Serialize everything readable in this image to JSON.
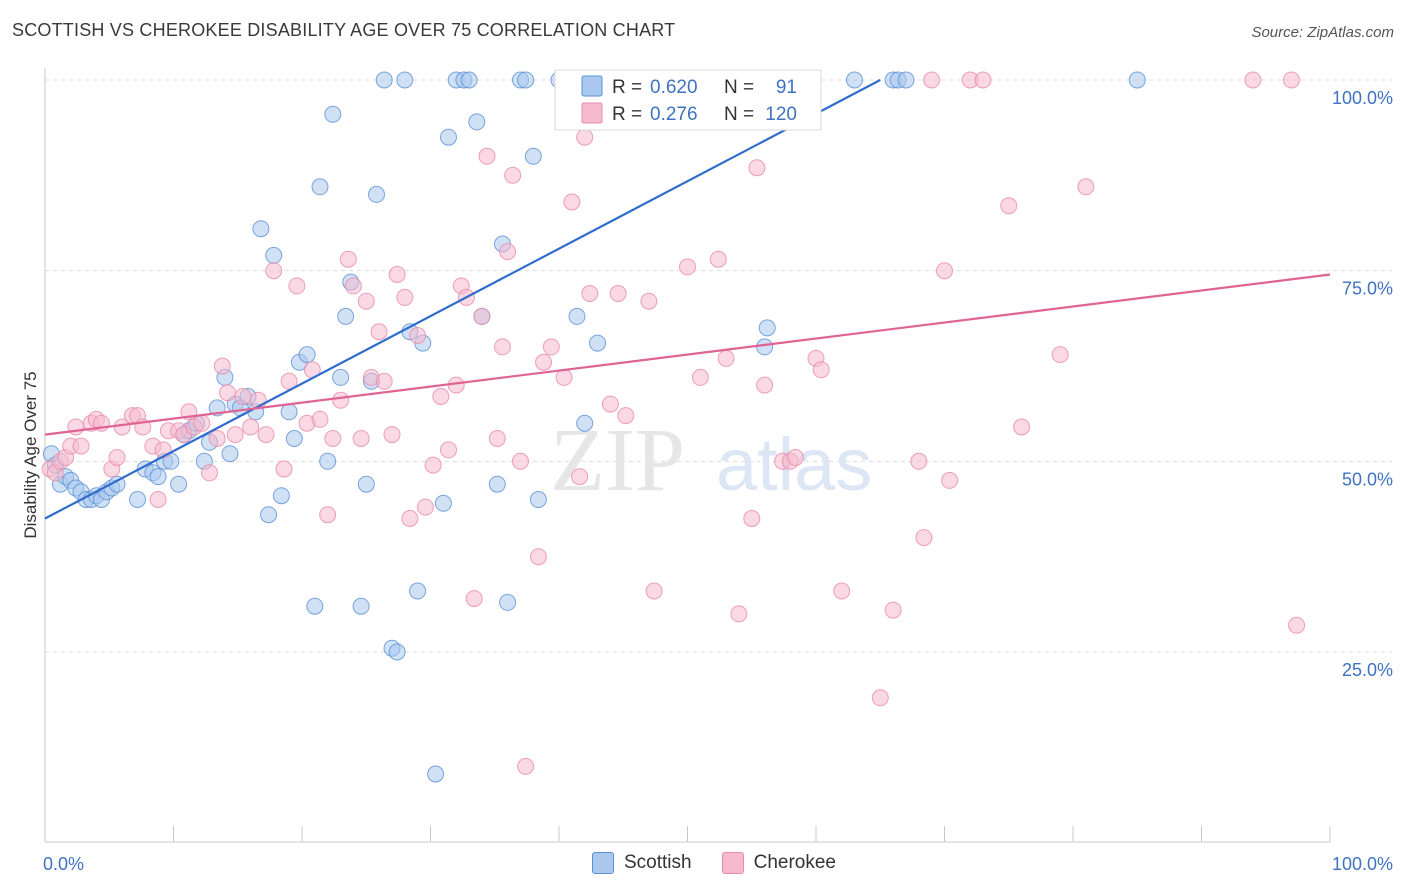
{
  "title": "SCOTTISH VS CHEROKEE DISABILITY AGE OVER 75 CORRELATION CHART",
  "source": "Source: ZipAtlas.com",
  "watermark": {
    "zip": "ZIP",
    "atlas": "atlas"
  },
  "colors": {
    "scottish_fill": "#aac8ee",
    "scottish_stroke": "#5b8fd6",
    "scottish_line": "#2f6ccc",
    "cherokee_fill": "#f5bacd",
    "cherokee_stroke": "#e88aa8",
    "cherokee_line": "#e06393",
    "axis_label": "#3f72c2",
    "grid": "#dcdcdc"
  },
  "stats_legend": [
    {
      "series": "Scottish",
      "r_label": "R =",
      "r_value": "0.620",
      "n_label": "N =",
      "n_value": "91"
    },
    {
      "series": "Cherokee",
      "r_label": "R =",
      "r_value": "0.276",
      "n_label": "N =",
      "n_value": "120"
    }
  ],
  "chart_data": {
    "type": "scatter",
    "title": "SCOTTISH VS CHEROKEE DISABILITY AGE OVER 75 CORRELATION CHART",
    "xlabel": "",
    "ylabel": "Disability Age Over 75",
    "xlim": [
      0,
      100
    ],
    "ylim": [
      0,
      102
    ],
    "x_tick_labels": [
      "0.0%",
      "100.0%"
    ],
    "y_ticks": [
      25,
      50,
      75,
      100
    ],
    "y_tick_labels": [
      "25.0%",
      "50.0%",
      "75.0%",
      "100.0%"
    ],
    "grid": "horizontal dashed",
    "legend": "bottom-center",
    "series": [
      {
        "name": "Scottish",
        "trend": {
          "x": [
            0,
            65
          ],
          "y": [
            42.5,
            100
          ]
        },
        "points": [
          [
            0.5,
            51
          ],
          [
            0.8,
            49.5
          ],
          [
            1.2,
            47
          ],
          [
            1.6,
            48
          ],
          [
            2,
            47.5
          ],
          [
            2.4,
            46.5
          ],
          [
            2.8,
            46
          ],
          [
            3.2,
            45
          ],
          [
            3.6,
            45
          ],
          [
            4,
            45.5
          ],
          [
            4.4,
            45
          ],
          [
            4.8,
            46
          ],
          [
            5.2,
            46.5
          ],
          [
            5.6,
            47
          ],
          [
            7.2,
            45
          ],
          [
            7.8,
            49
          ],
          [
            8.4,
            48.5
          ],
          [
            8.8,
            48
          ],
          [
            9.3,
            50
          ],
          [
            9.8,
            50
          ],
          [
            10.4,
            47
          ],
          [
            10.8,
            53.5
          ],
          [
            11.2,
            54
          ],
          [
            11.8,
            55
          ],
          [
            12.4,
            50
          ],
          [
            12.8,
            52.5
          ],
          [
            13.4,
            57
          ],
          [
            14,
            61
          ],
          [
            14.4,
            51
          ],
          [
            14.8,
            57.5
          ],
          [
            15.2,
            57
          ],
          [
            15.8,
            58.5
          ],
          [
            16.4,
            56.5
          ],
          [
            16.8,
            80.5
          ],
          [
            17.4,
            43
          ],
          [
            17.8,
            77
          ],
          [
            18.4,
            45.5
          ],
          [
            19,
            56.5
          ],
          [
            19.4,
            53
          ],
          [
            19.8,
            63
          ],
          [
            20.4,
            64
          ],
          [
            21,
            31
          ],
          [
            21.4,
            86
          ],
          [
            22,
            50
          ],
          [
            22.4,
            95.5
          ],
          [
            23,
            61
          ],
          [
            23.4,
            69
          ],
          [
            23.8,
            73.5
          ],
          [
            24.6,
            31
          ],
          [
            25,
            47
          ],
          [
            25.4,
            60.5
          ],
          [
            25.8,
            85
          ],
          [
            26.4,
            100
          ],
          [
            27,
            25.5
          ],
          [
            27.4,
            25
          ],
          [
            28,
            100
          ],
          [
            28.4,
            67
          ],
          [
            29,
            33
          ],
          [
            29.4,
            65.5
          ],
          [
            30.4,
            9
          ],
          [
            31,
            44.5
          ],
          [
            31.4,
            92.5
          ],
          [
            32,
            100
          ],
          [
            32.6,
            100
          ],
          [
            33,
            100
          ],
          [
            33.6,
            94.5
          ],
          [
            34,
            69
          ],
          [
            35.2,
            47
          ],
          [
            35.6,
            78.5
          ],
          [
            36,
            31.5
          ],
          [
            37,
            100
          ],
          [
            37.4,
            100
          ],
          [
            38,
            90
          ],
          [
            38.4,
            45
          ],
          [
            40,
            100
          ],
          [
            41.4,
            69
          ],
          [
            42,
            55
          ],
          [
            43,
            65.5
          ],
          [
            45,
            100
          ],
          [
            47,
            100
          ],
          [
            50,
            100
          ],
          [
            56,
            65
          ],
          [
            56.2,
            67.5
          ],
          [
            63,
            100
          ],
          [
            66,
            100
          ],
          [
            85,
            100
          ],
          [
            66.4,
            100
          ],
          [
            67,
            100
          ]
        ]
      },
      {
        "name": "Cherokee",
        "trend": {
          "x": [
            0,
            100
          ],
          "y": [
            53.5,
            74.5
          ]
        },
        "points": [
          [
            0.4,
            49
          ],
          [
            0.8,
            48.5
          ],
          [
            1.2,
            50
          ],
          [
            1.6,
            50.5
          ],
          [
            2,
            52
          ],
          [
            2.4,
            54.5
          ],
          [
            2.8,
            52
          ],
          [
            3.6,
            55
          ],
          [
            4,
            55.5
          ],
          [
            4.4,
            55
          ],
          [
            5.2,
            49
          ],
          [
            5.6,
            50.5
          ],
          [
            6,
            54.5
          ],
          [
            6.8,
            56
          ],
          [
            7.2,
            56
          ],
          [
            7.6,
            54.5
          ],
          [
            8.4,
            52
          ],
          [
            8.8,
            45
          ],
          [
            9.2,
            51.5
          ],
          [
            9.6,
            54
          ],
          [
            10.4,
            54
          ],
          [
            10.8,
            53.5
          ],
          [
            11.2,
            56.5
          ],
          [
            11.6,
            54.5
          ],
          [
            12.2,
            55
          ],
          [
            12.8,
            48.5
          ],
          [
            13.4,
            53
          ],
          [
            13.8,
            62.5
          ],
          [
            14.2,
            59
          ],
          [
            14.8,
            53.5
          ],
          [
            15.4,
            58.5
          ],
          [
            16,
            54.5
          ],
          [
            16.6,
            58
          ],
          [
            17.2,
            53.5
          ],
          [
            17.8,
            75
          ],
          [
            18.6,
            49
          ],
          [
            19,
            60.5
          ],
          [
            19.6,
            73
          ],
          [
            20.4,
            55
          ],
          [
            20.8,
            62
          ],
          [
            21.4,
            55.5
          ],
          [
            22,
            43
          ],
          [
            22.4,
            53
          ],
          [
            23,
            58
          ],
          [
            23.6,
            76.5
          ],
          [
            24,
            73
          ],
          [
            24.6,
            53
          ],
          [
            25,
            71
          ],
          [
            25.4,
            61
          ],
          [
            26,
            67
          ],
          [
            26.4,
            60.5
          ],
          [
            27,
            53.5
          ],
          [
            27.4,
            74.5
          ],
          [
            28,
            71.5
          ],
          [
            28.4,
            42.5
          ],
          [
            29,
            66.5
          ],
          [
            29.6,
            44
          ],
          [
            30.2,
            49.5
          ],
          [
            30.8,
            58.5
          ],
          [
            31.4,
            51.5
          ],
          [
            32,
            60
          ],
          [
            32.4,
            73
          ],
          [
            32.8,
            71.5
          ],
          [
            33.4,
            32
          ],
          [
            34,
            69
          ],
          [
            34.4,
            90
          ],
          [
            35.2,
            53
          ],
          [
            35.6,
            65
          ],
          [
            36,
            77.5
          ],
          [
            36.4,
            87.5
          ],
          [
            37,
            50
          ],
          [
            37.4,
            10
          ],
          [
            38.4,
            37.5
          ],
          [
            38.8,
            63
          ],
          [
            39.4,
            65
          ],
          [
            40.4,
            61
          ],
          [
            41,
            84
          ],
          [
            41.6,
            48
          ],
          [
            42,
            92.5
          ],
          [
            42.4,
            72
          ],
          [
            44,
            57.5
          ],
          [
            44.6,
            72
          ],
          [
            45.2,
            56
          ],
          [
            47,
            71
          ],
          [
            47.4,
            33
          ],
          [
            50,
            75.5
          ],
          [
            51,
            61
          ],
          [
            52.4,
            76.5
          ],
          [
            53,
            63.5
          ],
          [
            54,
            30
          ],
          [
            55,
            42.5
          ],
          [
            56,
            60
          ],
          [
            57.4,
            50
          ],
          [
            58,
            50
          ],
          [
            58.4,
            50.5
          ],
          [
            60,
            63.5
          ],
          [
            62,
            33
          ],
          [
            65,
            19
          ],
          [
            66,
            30.5
          ],
          [
            68,
            50
          ],
          [
            68.4,
            40
          ],
          [
            69,
            100
          ],
          [
            70,
            75
          ],
          [
            70.4,
            47.5
          ],
          [
            72,
            100
          ],
          [
            73,
            100
          ],
          [
            75,
            83.5
          ],
          [
            76,
            54.5
          ],
          [
            79,
            64
          ],
          [
            81,
            86
          ],
          [
            94,
            100
          ],
          [
            97,
            100
          ],
          [
            97.4,
            28.5
          ],
          [
            46,
            100
          ],
          [
            48,
            100
          ],
          [
            55.4,
            88.5
          ],
          [
            60.4,
            62
          ]
        ]
      }
    ]
  }
}
